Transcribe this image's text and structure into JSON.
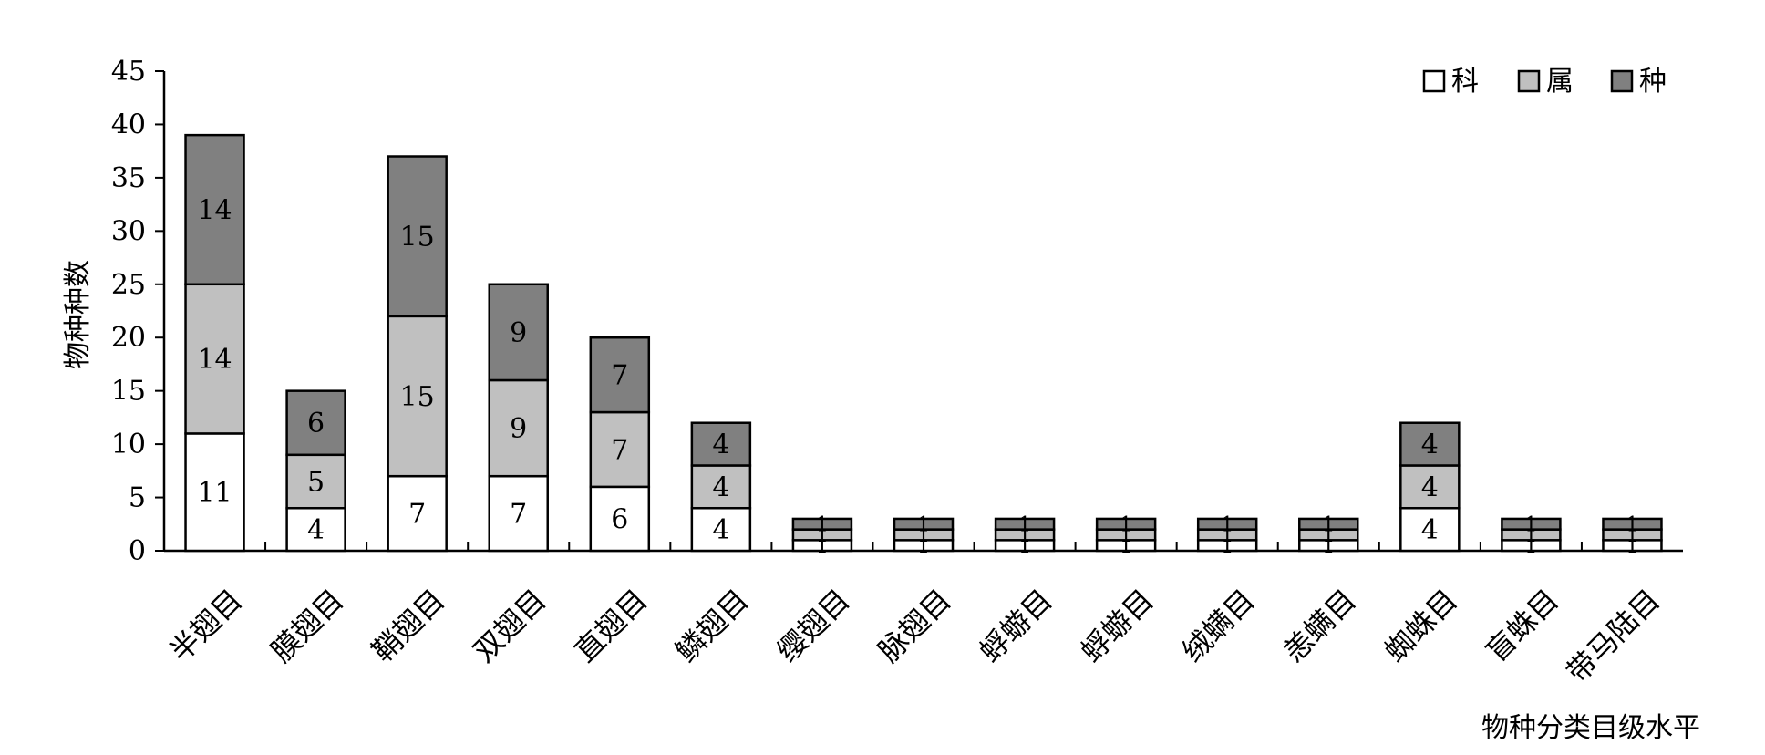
{
  "chart_data": {
    "type": "bar",
    "stacked": true,
    "title": "",
    "xlabel": "物种分类目级水平",
    "ylabel": "物种种数",
    "ylim": [
      0,
      45
    ],
    "yticks": [
      0,
      5,
      10,
      15,
      20,
      25,
      30,
      35,
      40,
      45
    ],
    "categories": [
      "半翅目",
      "膜翅目",
      "鞘翅目",
      "双翅目",
      "直翅目",
      "鳞翅目",
      "缨翅目",
      "脉翅目",
      "蜉蝣目",
      "蜉蝣目",
      "绒螨目",
      "恙螨目",
      "蜘蛛目",
      "盲蛛目",
      "带马陆目"
    ],
    "series": [
      {
        "name": "科",
        "color": "#ffffff",
        "values": [
          11,
          4,
          7,
          7,
          6,
          4,
          1,
          1,
          1,
          1,
          1,
          1,
          4,
          1,
          1
        ]
      },
      {
        "name": "属",
        "color": "#c0c0c0",
        "values": [
          14,
          5,
          15,
          9,
          7,
          4,
          1,
          1,
          1,
          1,
          1,
          1,
          4,
          1,
          1
        ]
      },
      {
        "name": "种",
        "color": "#808080",
        "values": [
          14,
          6,
          15,
          9,
          7,
          4,
          1,
          1,
          1,
          1,
          1,
          1,
          4,
          1,
          1
        ]
      }
    ],
    "legend_position": "top-right",
    "grid": false
  }
}
